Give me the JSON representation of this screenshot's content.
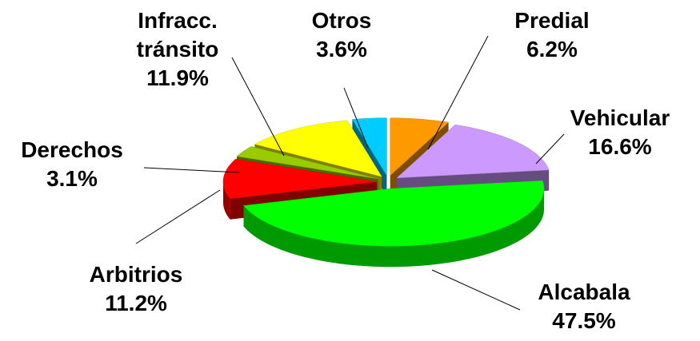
{
  "chart_data": {
    "type": "pie3d",
    "categories": [
      "Predial",
      "Vehicular",
      "Alcabala",
      "Arbitrios",
      "Derechos",
      "Infracc. tránsito",
      "Otros"
    ],
    "values": [
      6.2,
      16.6,
      47.5,
      11.2,
      3.1,
      11.9,
      3.6
    ],
    "value_labels": [
      "6.2%",
      "16.6%",
      "47.5%",
      "11.2%",
      "3.1%",
      "11.9%",
      "3.6%"
    ],
    "colors": [
      "#ff9900",
      "#cc99ff",
      "#00ff00",
      "#ff0000",
      "#99cc00",
      "#ffff00",
      "#00ccff"
    ]
  }
}
